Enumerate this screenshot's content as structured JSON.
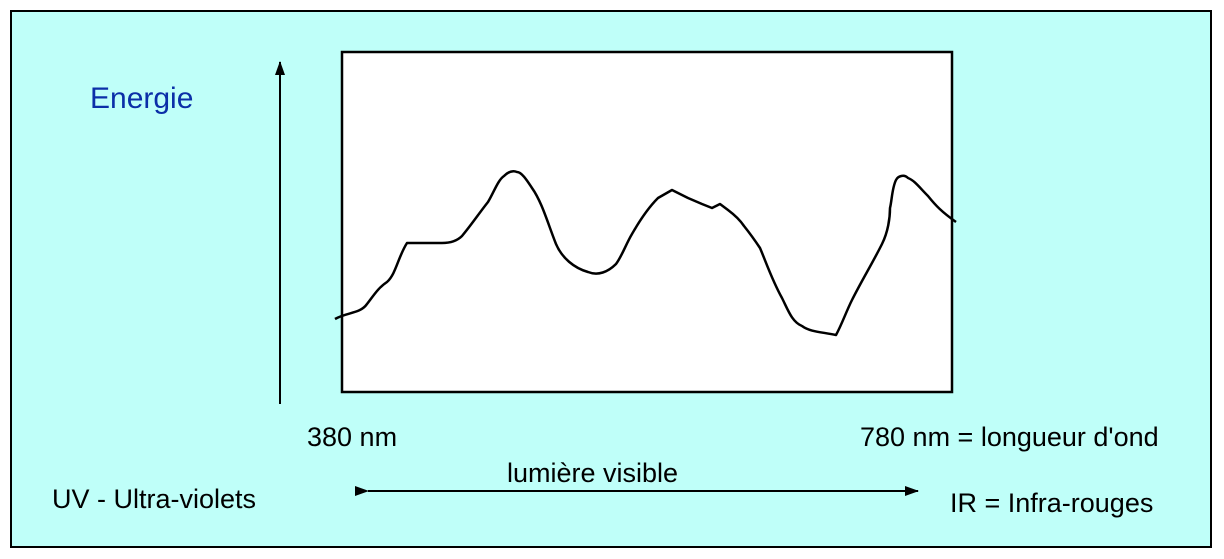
{
  "labels": {
    "energy": "Energie",
    "wavelength_start": "380 nm",
    "wavelength_end": "780 nm = longueur d'ond",
    "visible_light": "lumière visible",
    "uv": "UV - Ultra-violets",
    "ir": "IR = Infra-rouges"
  },
  "colors": {
    "background": "#bffff9",
    "energy_label": "#0b2fa8",
    "lines": "#000000"
  },
  "icons": {
    "vertical_axis": "arrow-up-icon",
    "spectrum_range": "double-arrow-icon"
  }
}
